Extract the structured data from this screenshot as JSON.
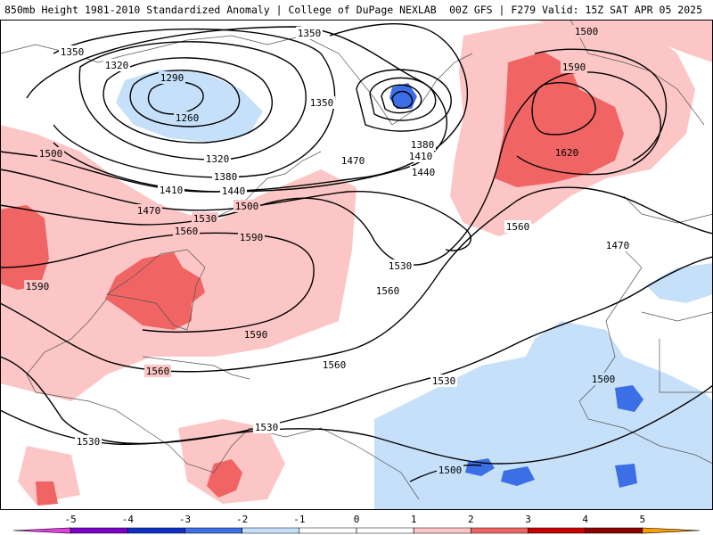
{
  "header": {
    "title_left": "850mb Height 1981-2010 Standardized Anomaly | College of DuPage NEXLAB",
    "title_right": "00Z GFS | F279 Valid: 15Z SAT APR 05 2025"
  },
  "contours": {
    "l1290": "1290",
    "l1260": "1260",
    "l1350a": "1350",
    "l1320a": "1320",
    "l1350b": "1350",
    "l1350c": "1350",
    "l1500a": "1500",
    "l1590a": "1590",
    "l1620": "1620",
    "l1500b": "1500",
    "l1320b": "1320",
    "l1470a": "1470",
    "l1380a": "1380",
    "l1410a": "1410",
    "l1440a": "1440",
    "l1380b": "1380",
    "l1410b": "1410",
    "l1440b": "1440",
    "l1470b": "1470",
    "l1500c": "1500",
    "l1530a": "1530",
    "l1560a": "1560",
    "l1590b": "1590",
    "l1590c": "1590",
    "l1530b": "1530",
    "l1560b": "1560",
    "l1560c": "1560",
    "l1590d": "1590",
    "l1560d": "1560",
    "l1560e": "1560",
    "l1530c": "1530",
    "l1470c": "1470",
    "l1500d": "1500",
    "l1530d": "1530",
    "l1530e": "1530",
    "l1500e": "1500"
  },
  "legend": {
    "ticks": [
      "-5",
      "-4",
      "-3",
      "-2",
      "-1",
      "0",
      "1",
      "2",
      "3",
      "4",
      "5"
    ],
    "colors": [
      "#e040e0",
      "#7a00c8",
      "#1030c8",
      "#3c6ee6",
      "#c6e0fa",
      "#ffffff",
      "#ffffff",
      "#fcc6c6",
      "#f06464",
      "#c80000",
      "#8c0000",
      "#ffa000"
    ]
  }
}
